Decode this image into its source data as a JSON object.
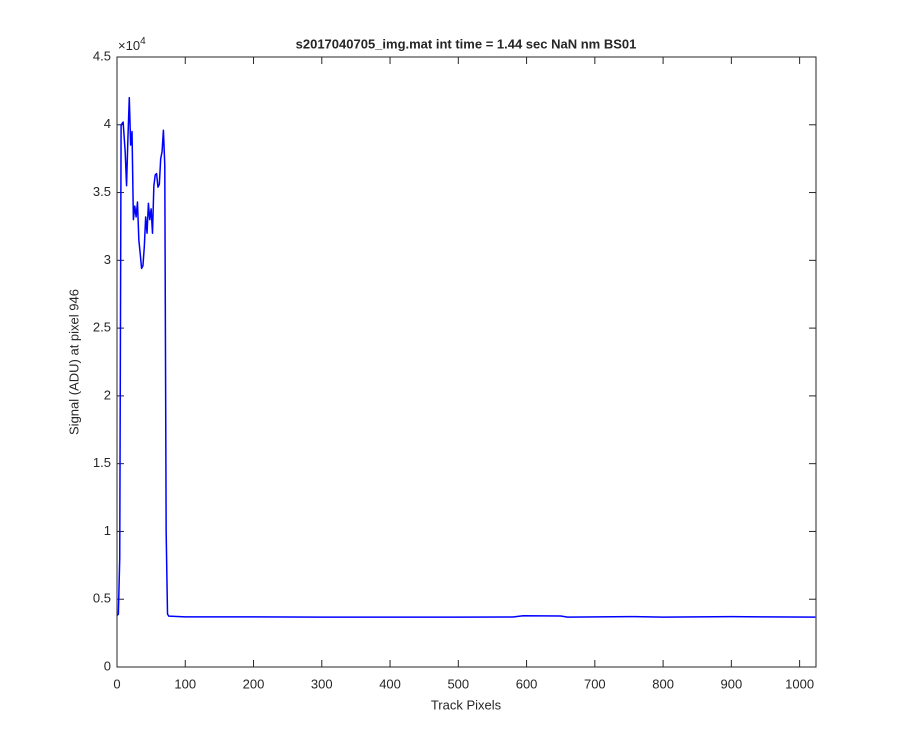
{
  "chart_data": {
    "type": "line",
    "title": "s2017040705_img.mat int time = 1.44 sec  NaN nm BS01",
    "x_label": "Track Pixels",
    "y_label": "Signal (ADU) at pixel 946",
    "y_exponent": {
      "base": "×10",
      "power": "4"
    },
    "x": [
      0,
      2,
      4,
      6,
      9,
      12,
      14,
      16,
      18,
      20,
      22,
      24,
      26,
      28,
      30,
      32,
      34,
      36,
      38,
      40,
      42,
      44,
      46,
      48,
      50,
      52,
      54,
      56,
      58,
      60,
      62,
      64,
      66,
      68,
      70,
      72,
      74,
      76,
      100,
      200,
      300,
      400,
      500,
      580,
      595,
      650,
      660,
      750,
      800,
      900,
      950,
      1023
    ],
    "series": [
      {
        "name": "signal",
        "color": "#0000ff",
        "values": [
          3800,
          3900,
          8000,
          40000,
          40200,
          38000,
          35500,
          39000,
          42000,
          38500,
          39500,
          33000,
          34000,
          33200,
          34300,
          31500,
          30500,
          29400,
          29600,
          31000,
          33200,
          32000,
          34200,
          33000,
          33800,
          32000,
          35500,
          36300,
          36400,
          35400,
          35600,
          37500,
          38000,
          39600,
          37000,
          10000,
          3900,
          3750,
          3700,
          3700,
          3680,
          3680,
          3680,
          3690,
          3780,
          3760,
          3680,
          3720,
          3680,
          3720,
          3700,
          3680
        ]
      }
    ],
    "xlim": [
      0,
      1024
    ],
    "xticks": [
      0,
      100,
      200,
      300,
      400,
      500,
      600,
      700,
      800,
      900,
      1000
    ],
    "ylim": [
      0,
      45000
    ],
    "yticks": [
      0,
      {
        "value": 5000,
        "label": "0.5"
      },
      {
        "value": 10000,
        "label": "1"
      },
      {
        "value": 15000,
        "label": "1.5"
      },
      {
        "value": 20000,
        "label": "2"
      },
      {
        "value": 25000,
        "label": "2.5"
      },
      {
        "value": 30000,
        "label": "3"
      },
      {
        "value": 35000,
        "label": "3.5"
      },
      {
        "value": 40000,
        "label": "4"
      },
      {
        "value": 45000,
        "label": "4.5"
      }
    ],
    "grid": false
  }
}
